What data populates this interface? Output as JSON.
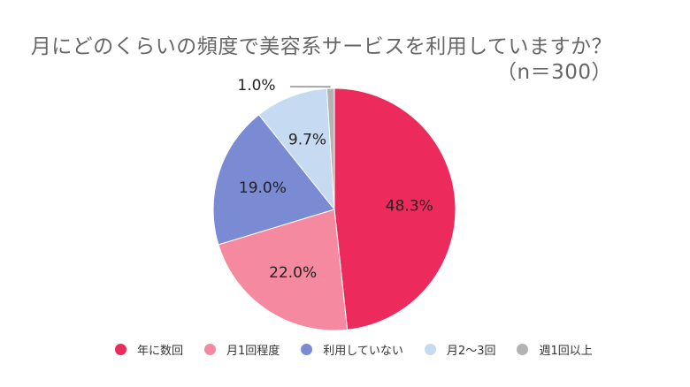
{
  "chart_data": {
    "type": "pie",
    "title": "月にどのくらいの頻度で美容系サービスを利用していますか？",
    "subtitle": "（n＝300）",
    "categories": [
      "年に数回",
      "月1回程度",
      "利用していない",
      "月2〜3回",
      "週1回以上"
    ],
    "values": [
      48.3,
      22.0,
      19.0,
      9.7,
      1.0
    ],
    "labels": [
      "48.3%",
      "22.0%",
      "19.0%",
      "9.7%",
      "1.0%"
    ],
    "colors": [
      "#EC2A5C",
      "#F5899F",
      "#7A8BD4",
      "#C6DAF1",
      "#B3B3B3"
    ],
    "start": "top",
    "direction": "clockwise",
    "legend_position": "bottom"
  }
}
